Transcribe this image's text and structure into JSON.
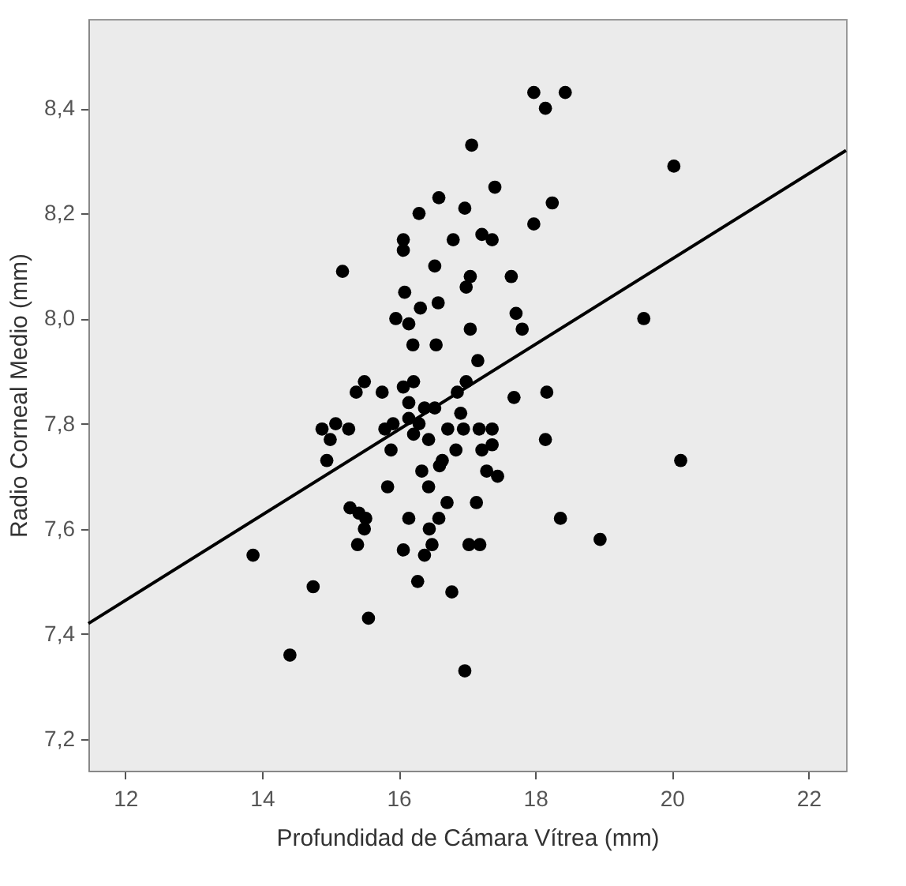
{
  "chart_data": {
    "type": "scatter",
    "xlabel": "Profundidad de Cámara Vítrea (mm)",
    "ylabel": "Radio Corneal Medio (mm)",
    "xlim": [
      11.46,
      22.55
    ],
    "ylim": [
      7.14,
      8.57
    ],
    "xticks": [
      12,
      14,
      16,
      18,
      20,
      22
    ],
    "yticks": [
      {
        "value": 7.2,
        "label": "7,2"
      },
      {
        "value": 7.4,
        "label": "7,4"
      },
      {
        "value": 7.6,
        "label": "7,6"
      },
      {
        "value": 7.8,
        "label": "7,8"
      },
      {
        "value": 8.0,
        "label": "8,0"
      },
      {
        "value": 8.2,
        "label": "8,2"
      },
      {
        "value": 8.4,
        "label": "8,4"
      }
    ],
    "grid": false,
    "series": [
      {
        "marker": "circle",
        "color": "#000000",
        "x": [
          17.98,
          18.44,
          18.15,
          17.07,
          20.03,
          17.41,
          16.59,
          16.3,
          16.97,
          18.25,
          17.98,
          16.07,
          16.07,
          16.8,
          17.22,
          17.37,
          15.18,
          16.53,
          17.05,
          16.99,
          17.65,
          16.09,
          16.32,
          16.58,
          17.72,
          17.81,
          15.96,
          16.15,
          17.05,
          16.21,
          16.55,
          17.16,
          19.59,
          15.5,
          15.38,
          15.76,
          16.07,
          16.22,
          16.99,
          16.86,
          17.69,
          18.17,
          16.15,
          16.38,
          16.53,
          16.91,
          16.15,
          16.3,
          14.88,
          15.08,
          15.27,
          15.0,
          15.8,
          15.92,
          16.72,
          16.95,
          17.18,
          17.37,
          16.22,
          16.44,
          17.37,
          17.22,
          15.89,
          16.84,
          18.15,
          14.95,
          16.64,
          16.6,
          16.34,
          17.29,
          17.45,
          16.44,
          15.84,
          20.13,
          16.71,
          17.14,
          15.29,
          15.42,
          15.52,
          15.5,
          16.15,
          16.59,
          16.45,
          18.37,
          15.4,
          16.49,
          16.38,
          16.07,
          17.03,
          17.19,
          18.95,
          13.87,
          14.75,
          16.28,
          16.78,
          15.56,
          14.41,
          16.97
        ],
        "values": [
          8.43,
          8.43,
          8.4,
          8.33,
          8.29,
          8.25,
          8.23,
          8.2,
          8.21,
          8.22,
          8.18,
          8.15,
          8.13,
          8.15,
          8.16,
          8.15,
          8.09,
          8.1,
          8.08,
          8.06,
          8.08,
          8.05,
          8.02,
          8.03,
          8.01,
          7.98,
          8.0,
          7.99,
          7.98,
          7.95,
          7.95,
          7.92,
          8.0,
          7.88,
          7.86,
          7.86,
          7.87,
          7.88,
          7.88,
          7.86,
          7.85,
          7.86,
          7.84,
          7.83,
          7.83,
          7.82,
          7.81,
          7.8,
          7.79,
          7.8,
          7.79,
          7.77,
          7.79,
          7.8,
          7.79,
          7.79,
          7.79,
          7.79,
          7.78,
          7.77,
          7.76,
          7.75,
          7.75,
          7.75,
          7.77,
          7.73,
          7.73,
          7.72,
          7.71,
          7.71,
          7.7,
          7.68,
          7.68,
          7.73,
          7.65,
          7.65,
          7.64,
          7.63,
          7.62,
          7.6,
          7.62,
          7.62,
          7.6,
          7.62,
          7.57,
          7.57,
          7.55,
          7.56,
          7.57,
          7.57,
          7.58,
          7.55,
          7.49,
          7.5,
          7.48,
          7.43,
          7.36,
          7.33
        ]
      },
      {
        "type": "line",
        "color": "#000000",
        "x": [
          11.46,
          22.55
        ],
        "values": [
          7.42,
          8.32
        ]
      }
    ]
  }
}
